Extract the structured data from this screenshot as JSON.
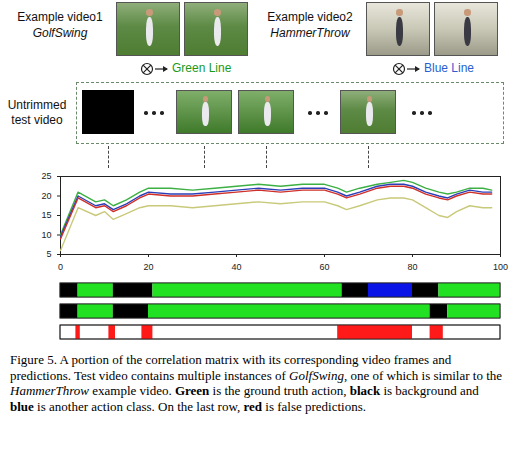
{
  "examples": [
    {
      "label": "Example video1",
      "action": "GolfSwing",
      "line_label": "Green Line",
      "line_color": "#1a9a1a"
    },
    {
      "label": "Example video2",
      "action": "HammerThrow",
      "line_label": "Blue Line",
      "line_color": "#2a5fd0"
    }
  ],
  "untrimmed_label": "Untrimmed test video",
  "chart_data": {
    "type": "line",
    "x": [
      0,
      4,
      8,
      10,
      12,
      15,
      18,
      20,
      25,
      30,
      35,
      40,
      45,
      50,
      55,
      60,
      63,
      65,
      68,
      72,
      75,
      78,
      80,
      83,
      86,
      88,
      90,
      93,
      96,
      98
    ],
    "series": [
      {
        "color": "#3cb043",
        "values": [
          10,
          21,
          18.5,
          19,
          17.5,
          19,
          21,
          22,
          22,
          21.5,
          22,
          22.5,
          23,
          22.5,
          23,
          23,
          22,
          21,
          22,
          23,
          23.5,
          24,
          23.5,
          22,
          21,
          20.5,
          21,
          22,
          22,
          21.5
        ]
      },
      {
        "color": "#2b3fb8",
        "values": [
          9.5,
          20,
          17.5,
          18,
          16.5,
          18,
          20,
          21,
          20.5,
          20.5,
          21,
          21.5,
          22,
          21.5,
          22,
          22,
          21,
          20,
          21,
          22.5,
          23,
          23,
          22.5,
          21,
          20,
          19.5,
          20.5,
          21.5,
          21,
          21
        ]
      },
      {
        "color": "#d0302a",
        "values": [
          9,
          19.5,
          17,
          17.5,
          16,
          17.5,
          19.5,
          20.5,
          20,
          20,
          20.5,
          21,
          21.5,
          21,
          21.5,
          21.5,
          20.5,
          19.5,
          20.5,
          22,
          22.5,
          22.5,
          22,
          20.5,
          19.5,
          19,
          20,
          21,
          20.5,
          20.5
        ]
      },
      {
        "color": "#c9c97a",
        "values": [
          6,
          17,
          15,
          16,
          14,
          15.5,
          17,
          17.5,
          17.5,
          17,
          17.5,
          18,
          18.5,
          18,
          18.5,
          18.5,
          17.5,
          16.5,
          17.5,
          19,
          19.5,
          19.5,
          19,
          17,
          15,
          14.5,
          16,
          17.5,
          17,
          17
        ]
      }
    ],
    "xlim": [
      0,
      100
    ],
    "xticks": [
      0,
      20,
      40,
      60,
      80,
      100
    ],
    "ylim": [
      5,
      25
    ],
    "yticks": [
      5,
      10,
      15,
      20,
      25
    ]
  },
  "timelines": [
    {
      "segments": [
        {
          "start": 0,
          "end": 4,
          "color": "#000000"
        },
        {
          "start": 4,
          "end": 12,
          "color": "#22e022"
        },
        {
          "start": 12,
          "end": 21,
          "color": "#000000"
        },
        {
          "start": 21,
          "end": 64,
          "color": "#22e022"
        },
        {
          "start": 64,
          "end": 70,
          "color": "#000000"
        },
        {
          "start": 70,
          "end": 80,
          "color": "#0a14e6"
        },
        {
          "start": 80,
          "end": 86,
          "color": "#000000"
        },
        {
          "start": 86,
          "end": 100,
          "color": "#22e022"
        }
      ]
    },
    {
      "segments": [
        {
          "start": 0,
          "end": 4,
          "color": "#000000"
        },
        {
          "start": 4,
          "end": 12,
          "color": "#22e022"
        },
        {
          "start": 12,
          "end": 20,
          "color": "#000000"
        },
        {
          "start": 20,
          "end": 84,
          "color": "#22e022"
        },
        {
          "start": 84,
          "end": 88,
          "color": "#000000"
        },
        {
          "start": 88,
          "end": 100,
          "color": "#22e022"
        }
      ]
    },
    {
      "segments": [
        {
          "start": 3.5,
          "end": 4.5,
          "color": "#ff1a1a"
        },
        {
          "start": 11,
          "end": 12.5,
          "color": "#ff1a1a"
        },
        {
          "start": 18.5,
          "end": 21,
          "color": "#ff1a1a"
        },
        {
          "start": 63,
          "end": 80,
          "color": "#ff1a1a"
        },
        {
          "start": 84,
          "end": 87,
          "color": "#ff1a1a"
        }
      ]
    }
  ],
  "caption": [
    {
      "text": "Figure 5. A portion of the correlation matrix with its corresponding video frames and predictions. Test video contains multiple instances of "
    },
    {
      "text": "GolfSwing",
      "style": "italic"
    },
    {
      "text": ", one of which is similar to the "
    },
    {
      "text": "HammerThrow",
      "style": "italic"
    },
    {
      "text": " example video. "
    },
    {
      "text": "Green",
      "style": "bold"
    },
    {
      "text": " is the ground truth action, "
    },
    {
      "text": "black",
      "style": "bold"
    },
    {
      "text": " is background and "
    },
    {
      "text": "blue",
      "style": "bold"
    },
    {
      "text": " is another action class. On the last row, "
    },
    {
      "text": "red",
      "style": "bold"
    },
    {
      "text": " is false predictions."
    }
  ]
}
